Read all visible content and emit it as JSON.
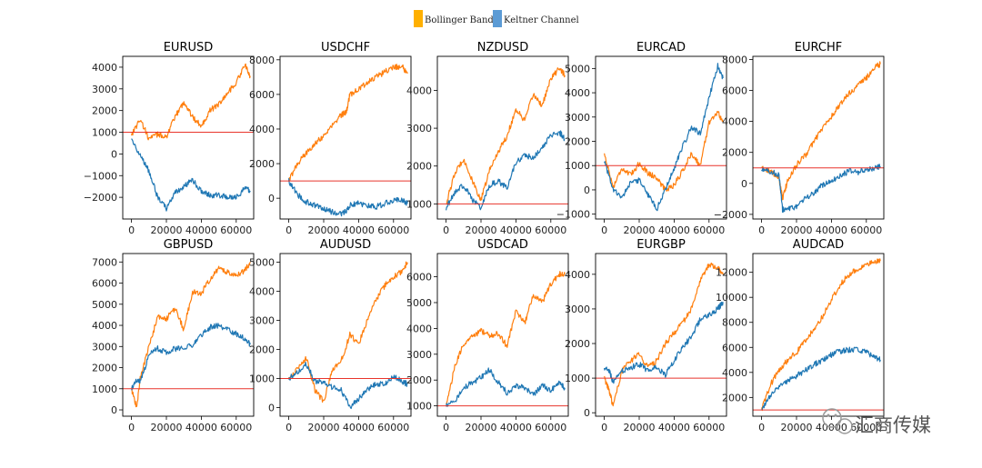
{
  "legend": [
    {
      "label": "Bollinger Bands",
      "color": "#ffb000"
    },
    {
      "label": "Keltner Channel",
      "color": "#5b9bd5"
    }
  ],
  "watermark": "汇商传媒",
  "chart_data": [
    {
      "type": "line",
      "title": "EURUSD",
      "x": [
        0,
        5000,
        10000,
        15000,
        20000,
        25000,
        30000,
        35000,
        40000,
        45000,
        50000,
        55000,
        60000,
        65000,
        68000
      ],
      "xlim": [
        -5000,
        70000
      ],
      "xticks": [
        0,
        20000,
        40000,
        60000
      ],
      "ylim": [
        -3000,
        4500
      ],
      "yticks": [
        -2000,
        -1000,
        0,
        1000,
        2000,
        3000,
        4000
      ],
      "hline": 1000,
      "series": [
        {
          "name": "Bollinger Bands",
          "color": "#ff7f0e",
          "values": [
            900,
            1600,
            700,
            900,
            800,
            1700,
            2400,
            1700,
            1300,
            2000,
            2300,
            2800,
            3300,
            4100,
            3600
          ]
        },
        {
          "name": "Keltner Channel",
          "color": "#1f77b4",
          "values": [
            600,
            0,
            -800,
            -2000,
            -2500,
            -1800,
            -1500,
            -1200,
            -1700,
            -1900,
            -1900,
            -2000,
            -2000,
            -1600,
            -1700
          ]
        }
      ]
    },
    {
      "type": "line",
      "title": "USDCHF",
      "x": [
        0,
        5000,
        10000,
        15000,
        20000,
        25000,
        30000,
        33000,
        35000,
        40000,
        45000,
        50000,
        55000,
        60000,
        65000,
        68000
      ],
      "xlim": [
        -5000,
        70000
      ],
      "xticks": [
        0,
        20000,
        40000,
        60000
      ],
      "ylim": [
        -1200,
        8200
      ],
      "yticks": [
        0,
        2000,
        4000,
        6000,
        8000
      ],
      "hline": 1000,
      "series": [
        {
          "name": "Bollinger Bands",
          "color": "#ff7f0e",
          "values": [
            1000,
            2000,
            2600,
            3200,
            3600,
            4200,
            4800,
            5000,
            6000,
            6300,
            6700,
            7000,
            7300,
            7600,
            7600,
            7200
          ]
        },
        {
          "name": "Keltner Channel",
          "color": "#1f77b4",
          "values": [
            1000,
            200,
            -200,
            -400,
            -600,
            -800,
            -900,
            -700,
            -400,
            -300,
            -400,
            -500,
            -300,
            -100,
            -100,
            -300
          ]
        }
      ]
    },
    {
      "type": "line",
      "title": "NZDUSD",
      "x": [
        0,
        5000,
        10000,
        15000,
        20000,
        25000,
        30000,
        35000,
        40000,
        45000,
        50000,
        55000,
        60000,
        65000,
        68000
      ],
      "xlim": [
        -5000,
        70000
      ],
      "xticks": [
        0,
        20000,
        40000,
        60000
      ],
      "ylim": [
        600,
        4900
      ],
      "yticks": [
        1000,
        2000,
        3000,
        4000
      ],
      "hline": 1000,
      "series": [
        {
          "name": "Bollinger Bands",
          "color": "#ff7f0e",
          "values": [
            1000,
            1800,
            2200,
            1600,
            1100,
            1900,
            2400,
            2800,
            3500,
            3200,
            3900,
            3600,
            4300,
            4600,
            4400
          ]
        },
        {
          "name": "Keltner Channel",
          "color": "#1f77b4",
          "values": [
            900,
            1300,
            1500,
            1100,
            900,
            1500,
            1600,
            1400,
            2100,
            2300,
            2200,
            2500,
            2800,
            2900,
            2700
          ]
        }
      ]
    },
    {
      "type": "line",
      "title": "EURCAD",
      "x": [
        0,
        5000,
        10000,
        15000,
        20000,
        25000,
        30000,
        35000,
        40000,
        45000,
        50000,
        55000,
        60000,
        65000,
        68000
      ],
      "xlim": [
        -5000,
        70000
      ],
      "xticks": [
        0,
        20000,
        40000,
        60000
      ],
      "ylim": [
        -1200,
        5500
      ],
      "yticks": [
        -1000,
        0,
        1000,
        2000,
        3000,
        4000,
        5000
      ],
      "hline": 1000,
      "series": [
        {
          "name": "Bollinger Bands",
          "color": "#ff7f0e",
          "values": [
            1500,
            100,
            900,
            600,
            1100,
            700,
            500,
            0,
            200,
            800,
            1500,
            1000,
            2800,
            3200,
            2800
          ]
        },
        {
          "name": "Keltner Channel",
          "color": "#1f77b4",
          "values": [
            1200,
            0,
            -300,
            300,
            400,
            -200,
            -800,
            0,
            900,
            1800,
            2600,
            2300,
            3800,
            5100,
            4600
          ]
        }
      ]
    },
    {
      "type": "line",
      "title": "EURCHF",
      "x": [
        0,
        5000,
        10000,
        12000,
        15000,
        20000,
        25000,
        30000,
        35000,
        40000,
        45000,
        50000,
        55000,
        60000,
        65000,
        68000
      ],
      "xlim": [
        -5000,
        70000
      ],
      "xticks": [
        0,
        20000,
        40000,
        60000
      ],
      "ylim": [
        -2300,
        8200
      ],
      "yticks": [
        -2000,
        0,
        2000,
        4000,
        6000,
        8000
      ],
      "hline": 1000,
      "series": [
        {
          "name": "Bollinger Bands",
          "color": "#ff7f0e",
          "values": [
            1000,
            800,
            300,
            -1000,
            200,
            1200,
            1800,
            2700,
            3600,
            4300,
            5100,
            5800,
            6300,
            6800,
            7500,
            7700
          ]
        },
        {
          "name": "Keltner Channel",
          "color": "#1f77b4",
          "values": [
            1000,
            800,
            500,
            -1700,
            -1700,
            -1500,
            -1000,
            -600,
            -100,
            200,
            500,
            800,
            700,
            900,
            1000,
            1100
          ]
        }
      ]
    },
    {
      "type": "line",
      "title": "GBPUSD",
      "x": [
        0,
        3000,
        5000,
        10000,
        15000,
        20000,
        25000,
        30000,
        35000,
        40000,
        45000,
        50000,
        55000,
        60000,
        65000,
        68000
      ],
      "xlim": [
        -5000,
        70000
      ],
      "xticks": [
        0,
        20000,
        40000,
        60000
      ],
      "ylim": [
        -300,
        7400
      ],
      "yticks": [
        0,
        1000,
        2000,
        3000,
        4000,
        5000,
        6000,
        7000
      ],
      "hline": 1000,
      "series": [
        {
          "name": "Bollinger Bands",
          "color": "#ff7f0e",
          "values": [
            1000,
            100,
            1500,
            3000,
            4400,
            4300,
            4800,
            3800,
            5600,
            5500,
            6200,
            6700,
            6500,
            6400,
            6600,
            7000
          ]
        },
        {
          "name": "Keltner Channel",
          "color": "#1f77b4",
          "values": [
            1000,
            1400,
            1300,
            2600,
            2900,
            2700,
            2900,
            2900,
            3100,
            3500,
            3900,
            4000,
            3800,
            3600,
            3400,
            3100
          ]
        }
      ]
    },
    {
      "type": "line",
      "title": "AUDUSD",
      "x": [
        0,
        5000,
        10000,
        15000,
        20000,
        25000,
        30000,
        35000,
        40000,
        45000,
        50000,
        55000,
        60000,
        65000,
        68000
      ],
      "xlim": [
        -5000,
        70000
      ],
      "xticks": [
        0,
        20000,
        40000,
        60000
      ],
      "ylim": [
        -300,
        5300
      ],
      "yticks": [
        0,
        1000,
        2000,
        3000,
        4000,
        5000
      ],
      "hline": 1000,
      "series": [
        {
          "name": "Bollinger Bands",
          "color": "#ff7f0e",
          "values": [
            1000,
            1300,
            1700,
            600,
            200,
            1300,
            1600,
            2500,
            2200,
            3000,
            3700,
            4200,
            4500,
            4700,
            5000
          ]
        },
        {
          "name": "Keltner Channel",
          "color": "#1f77b4",
          "values": [
            1000,
            1200,
            1500,
            900,
            900,
            700,
            600,
            0,
            300,
            600,
            800,
            800,
            1100,
            900,
            800
          ]
        }
      ]
    },
    {
      "type": "line",
      "title": "USDCAD",
      "x": [
        0,
        5000,
        10000,
        15000,
        20000,
        25000,
        30000,
        35000,
        40000,
        45000,
        50000,
        55000,
        60000,
        65000,
        68000
      ],
      "xlim": [
        -5000,
        70000
      ],
      "xticks": [
        0,
        20000,
        40000,
        60000
      ],
      "ylim": [
        600,
        6900
      ],
      "yticks": [
        1000,
        2000,
        3000,
        4000,
        5000,
        6000
      ],
      "hline": 1000,
      "series": [
        {
          "name": "Bollinger Bands",
          "color": "#ff7f0e",
          "values": [
            1000,
            2500,
            3400,
            3700,
            3900,
            3700,
            3800,
            3300,
            4700,
            4200,
            5300,
            5000,
            5700,
            6100,
            6100
          ]
        },
        {
          "name": "Keltner Channel",
          "color": "#1f77b4",
          "values": [
            1000,
            1200,
            1700,
            1900,
            2100,
            2400,
            1900,
            1500,
            1800,
            1700,
            1400,
            1800,
            1600,
            1900,
            1700
          ]
        }
      ]
    },
    {
      "type": "line",
      "title": "EURGBP",
      "x": [
        0,
        3000,
        5000,
        10000,
        15000,
        20000,
        25000,
        30000,
        35000,
        40000,
        45000,
        50000,
        55000,
        60000,
        65000,
        68000
      ],
      "xlim": [
        -5000,
        70000
      ],
      "xticks": [
        0,
        20000,
        40000,
        60000
      ],
      "ylim": [
        -100,
        4600
      ],
      "yticks": [
        0,
        1000,
        2000,
        3000,
        4000
      ],
      "hline": 1000,
      "series": [
        {
          "name": "Bollinger Bands",
          "color": "#ff7f0e",
          "values": [
            1000,
            600,
            200,
            1200,
            1500,
            1700,
            1300,
            1500,
            2000,
            2300,
            2600,
            3000,
            3800,
            4300,
            4200,
            4000
          ]
        },
        {
          "name": "Keltner Channel",
          "color": "#1f77b4",
          "values": [
            1300,
            1200,
            900,
            1200,
            1300,
            1400,
            1200,
            1300,
            1100,
            1500,
            1900,
            2200,
            2700,
            2800,
            3000,
            3200
          ]
        }
      ]
    },
    {
      "type": "line",
      "title": "AUDCAD",
      "x": [
        0,
        5000,
        10000,
        15000,
        20000,
        25000,
        30000,
        35000,
        40000,
        45000,
        50000,
        55000,
        60000,
        65000,
        68000
      ],
      "xlim": [
        -5000,
        70000
      ],
      "xticks": [
        0,
        20000,
        40000,
        60000
      ],
      "ylim": [
        500,
        13500
      ],
      "yticks": [
        2000,
        4000,
        6000,
        8000,
        10000,
        12000
      ],
      "hline": 1000,
      "series": [
        {
          "name": "Bollinger Bands",
          "color": "#ff7f0e",
          "values": [
            1000,
            3000,
            4200,
            5000,
            5600,
            6500,
            7500,
            8500,
            9800,
            11000,
            11800,
            12300,
            12600,
            12800,
            12900
          ]
        },
        {
          "name": "Keltner Channel",
          "color": "#1f77b4",
          "values": [
            1000,
            2100,
            2800,
            3300,
            3700,
            4200,
            4600,
            5000,
            5400,
            5700,
            5800,
            5900,
            5600,
            5200,
            5000
          ]
        }
      ]
    }
  ]
}
